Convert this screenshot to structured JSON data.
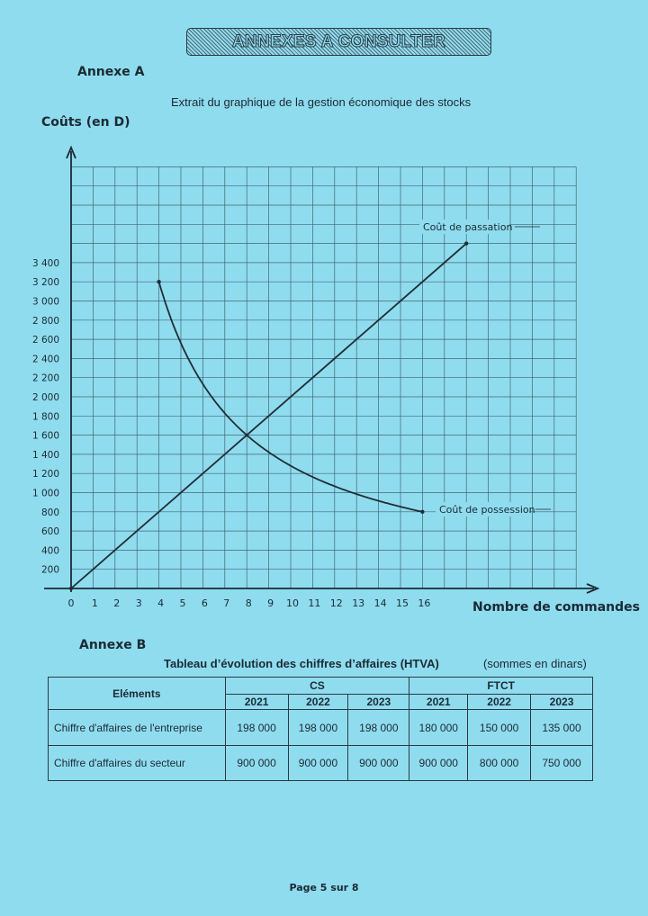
{
  "header": {
    "banner": "ANNEXES A CONSULTER"
  },
  "annexe_a": {
    "title": "Annexe A",
    "subtitle": "Extrait du graphique de la gestion économique des stocks"
  },
  "chart_data": {
    "type": "line",
    "title": "Extrait du graphique de la gestion économique des stocks",
    "xlabel": "Nombre de commandes",
    "ylabel": "Coûts (en D)",
    "xlim": [
      0,
      23
    ],
    "ylim": [
      0,
      4400
    ],
    "grid": true,
    "x_ticks": [
      "0",
      "1",
      "2",
      "3",
      "4",
      "5",
      "6",
      "7",
      "8",
      "9",
      "10",
      "11",
      "12",
      "13",
      "14",
      "15",
      "16"
    ],
    "y_ticks": [
      "200",
      "400",
      "600",
      "800",
      "1 000",
      "1 200",
      "1 400",
      "1 600",
      "1 800",
      "2 000",
      "2 200",
      "2 400",
      "2 600",
      "2 800",
      "3 000",
      "3 200",
      "3 400"
    ],
    "series": [
      {
        "name": "Coût de passation",
        "x": [
          0,
          18
        ],
        "y": [
          0,
          3600
        ],
        "formula": "200x"
      },
      {
        "name": "Coût de possession",
        "x": [
          4,
          5,
          6,
          7,
          8,
          9,
          10,
          11,
          12,
          13,
          14,
          15,
          16
        ],
        "y": [
          3200,
          2560,
          2133,
          1829,
          1600,
          1422,
          1280,
          1164,
          1067,
          985,
          914,
          853,
          800
        ],
        "formula": "12800/x"
      }
    ]
  },
  "annexe_b": {
    "title": "Annexe B",
    "table_title": "Tableau d’évolution des chiffres d’affaires (HTVA)",
    "units": "(sommes en dinars)",
    "col_header": "Eléments",
    "groups": [
      "CS",
      "FTCT"
    ],
    "years": [
      "2021",
      "2022",
      "2023",
      "2021",
      "2022",
      "2023"
    ],
    "rows": [
      {
        "label": "Chiffre d'affaires de l'entreprise",
        "values": [
          "198 000",
          "198 000",
          "198 000",
          "180 000",
          "150 000",
          "135 000"
        ]
      },
      {
        "label": "Chiffre d'affaires du secteur",
        "values": [
          "900 000",
          "900 000",
          "900 000",
          "900 000",
          "800 000",
          "750 000"
        ]
      }
    ]
  },
  "footer": {
    "page": "Page 5 sur 8"
  }
}
